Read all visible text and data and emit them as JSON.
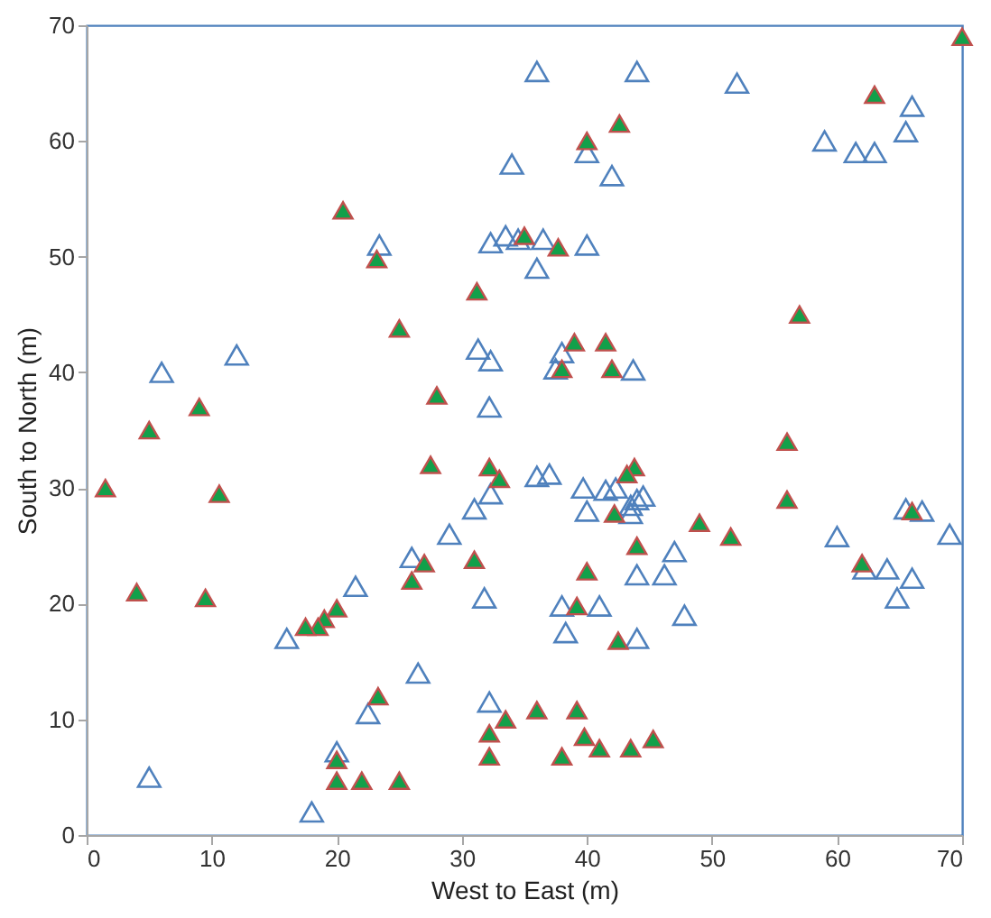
{
  "chart_data": {
    "type": "scatter",
    "xlabel": "West to East (m)",
    "ylabel": "South to North (m)",
    "xlim": [
      0,
      70
    ],
    "ylim": [
      0,
      70
    ],
    "xticks": [
      0,
      10,
      20,
      30,
      40,
      50,
      60,
      70
    ],
    "yticks": [
      0,
      10,
      20,
      30,
      40,
      50,
      60,
      70
    ],
    "grid": false,
    "marker": "triangle",
    "series": [
      {
        "color": "#4f81bd",
        "x": [
          36,
          44,
          52,
          59,
          61.5,
          63,
          65.5,
          66,
          34,
          40,
          42,
          23.4,
          32.3,
          33.5,
          34.5,
          36.5,
          40,
          36,
          12,
          6,
          31.3,
          32.3,
          37.5,
          38,
          43.7,
          32.2,
          36,
          37,
          31,
          32.3,
          39.7,
          41.5,
          42.3,
          43.5,
          44,
          44.5,
          40,
          43.5,
          29,
          60,
          65.5,
          66.8,
          69,
          62.2,
          64,
          66,
          64.8,
          26,
          21.5,
          31.8,
          47,
          46.2,
          44,
          41,
          38,
          38.3,
          44,
          47.8,
          16,
          26.5,
          22.5,
          32.2,
          20,
          18,
          5
        ],
        "values": [
          66,
          66,
          65,
          60,
          59,
          59,
          60.8,
          63,
          58,
          59,
          57,
          51,
          51.2,
          51.8,
          51.5,
          51.5,
          51,
          49,
          41.5,
          40,
          42,
          41,
          40.3,
          41.7,
          40.2,
          37,
          31,
          31.2,
          28.2,
          29.5,
          30,
          29.8,
          30,
          28.5,
          29,
          29.3,
          28,
          27.8,
          26,
          25.8,
          28.2,
          28,
          26,
          23,
          23,
          22.2,
          20.5,
          24,
          21.5,
          20.5,
          24.5,
          22.5,
          22.5,
          19.8,
          19.8,
          17.5,
          17,
          19,
          17,
          14,
          10.5,
          11.5,
          7.2,
          2,
          5
        ]
      },
      {
        "color": "#12a04a",
        "x": [
          70,
          63,
          42.6,
          40,
          20.5,
          35,
          37.7,
          23.2,
          31.2,
          57,
          25,
          39,
          41.5,
          38,
          42,
          28,
          9,
          5,
          56,
          27.5,
          32.2,
          43.8,
          33,
          43.2,
          1.5,
          10.6,
          56,
          42.2,
          49,
          51.5,
          44,
          66,
          62,
          27,
          31,
          40,
          26,
          4,
          9.5,
          20,
          19,
          18.5,
          17.5,
          39.2,
          42.5,
          23.3,
          33.5,
          36,
          39.2,
          32.2,
          39.8,
          41,
          43.5,
          45.3,
          38,
          32.2,
          20,
          20,
          22,
          25
        ],
        "values": [
          69,
          64,
          61.5,
          60,
          54,
          51.8,
          50.8,
          49.8,
          47,
          45,
          43.8,
          42.6,
          42.6,
          40.3,
          40.3,
          38,
          37,
          35,
          34,
          32,
          31.8,
          31.8,
          30.8,
          31.2,
          30,
          29.5,
          29,
          27.8,
          27,
          25.8,
          25,
          28,
          23.5,
          23.5,
          23.8,
          22.8,
          22,
          21,
          20.5,
          19.6,
          18.7,
          18,
          18,
          19.8,
          16.8,
          12,
          10,
          10.8,
          10.8,
          8.8,
          8.5,
          7.5,
          7.5,
          8.3,
          6.8,
          6.8,
          6.5,
          4.7,
          4.7,
          4.7
        ]
      }
    ]
  }
}
